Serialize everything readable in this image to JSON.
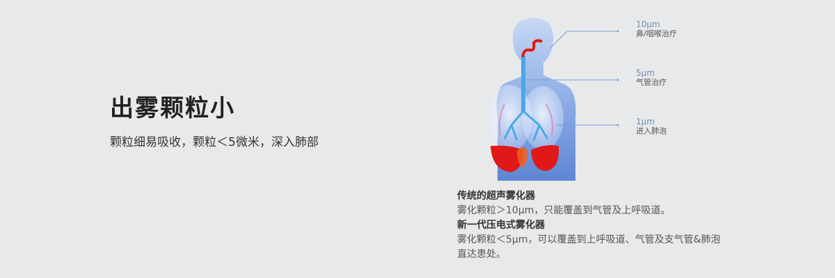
{
  "headline": "出雾颗粒小",
  "subline": "颗粒细易吸收，颗粒＜5微米，深入肺部",
  "callouts": [
    {
      "size": "10μm",
      "label": "鼻/咽喉治疗"
    },
    {
      "size": "5μm",
      "label": "气管治疗"
    },
    {
      "size": "1μm",
      "label": "进入肺泡"
    }
  ],
  "caption": {
    "title1": "传统的超声雾化器",
    "desc1": "雾化颗粒＞10μm，只能覆盖到气管及上呼吸道。",
    "title2": "新一代压电式雾化器",
    "desc2a": "雾化颗粒＜5μm，可以覆盖到上呼吸道、气管及支气管&肺泡",
    "desc2b": "直达患处。"
  },
  "colors": {
    "background": "#e8e9eb",
    "body_silhouette": "#7fa2e0",
    "lung_red": "#e01818",
    "callout_line": "#7a9fd6"
  }
}
